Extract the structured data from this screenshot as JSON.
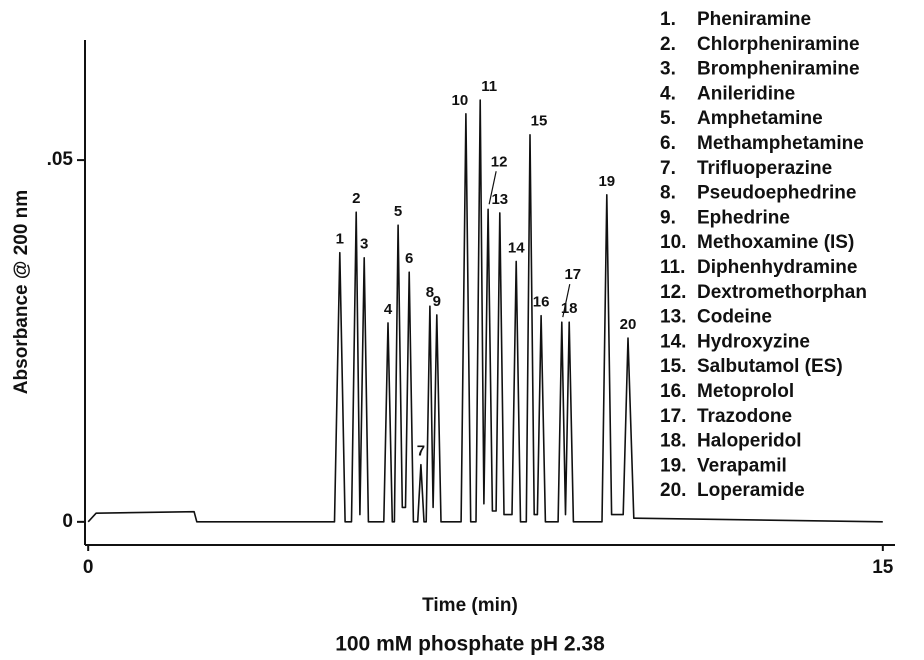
{
  "chart_data": {
    "type": "line",
    "subtitle": "100 mM phosphate pH 2.38",
    "x_label": "Time (min)",
    "y_label": "Absorbance @ 200 nm",
    "xlim": [
      -0.06,
      15.23
    ],
    "xticks": [
      0,
      15
    ],
    "ylim": [
      -0.0032,
      0.0666
    ],
    "yticks": [
      0,
      {
        "value": 0.05,
        "label": ".05"
      }
    ],
    "color": "#111111",
    "x": [
      0,
      0.15,
      2.0,
      2.05,
      4.65,
      4.75,
      4.85,
      4.97,
      5.06,
      5.13,
      5.21,
      5.29,
      5.58,
      5.66,
      5.74,
      5.78,
      5.85,
      5.93,
      5.99,
      6.06,
      6.14,
      6.22,
      6.28,
      6.34,
      6.38,
      6.45,
      6.51,
      6.58,
      6.66,
      7.04,
      7.13,
      7.22,
      7.32,
      7.4,
      7.47,
      7.55,
      7.63,
      7.7,
      7.77,
      7.85,
      8.0,
      8.08,
      8.16,
      8.27,
      8.34,
      8.42,
      8.48,
      8.55,
      8.63,
      8.87,
      8.94,
      9.01,
      9.08,
      9.16,
      9.7,
      9.79,
      9.88,
      10.1,
      10.19,
      10.3,
      15
    ],
    "values": [
      0,
      0.0012,
      0.0014,
      0,
      0,
      0.0372,
      0,
      0,
      0.0428,
      0.001,
      0.0365,
      0,
      0,
      0.0275,
      0,
      0,
      0.041,
      0.002,
      0.002,
      0.0345,
      0,
      0,
      0.0079,
      0,
      0,
      0.0298,
      0.002,
      0.0286,
      0,
      0,
      0.0564,
      0,
      0,
      0.0583,
      0.0025,
      0.0432,
      0.0015,
      0.0015,
      0.0427,
      0.001,
      0.001,
      0.036,
      0,
      0,
      0.0535,
      0.001,
      0.001,
      0.0285,
      0,
      0,
      0.0276,
      0.001,
      0.0276,
      0,
      0,
      0.0452,
      0.001,
      0.001,
      0.0254,
      0.0005,
      0
    ],
    "point_labels": [
      null,
      null,
      null,
      null,
      null,
      "1",
      null,
      null,
      "2",
      null,
      "3",
      null,
      null,
      "4",
      null,
      null,
      "5",
      null,
      null,
      "6",
      null,
      null,
      "7",
      null,
      null,
      "8",
      null,
      "9",
      null,
      null,
      "10",
      null,
      null,
      "11",
      null,
      "12",
      null,
      null,
      "13",
      null,
      null,
      "14",
      null,
      null,
      "15",
      null,
      null,
      "16",
      null,
      null,
      "17",
      null,
      "18",
      null,
      null,
      "19",
      null,
      null,
      "20",
      null,
      null
    ],
    "legend": [
      {
        "number": "1.",
        "name": "Pheniramine"
      },
      {
        "number": "2.",
        "name": "Chlorpheniramine"
      },
      {
        "number": "3.",
        "name": "Brompheniramine"
      },
      {
        "number": "4.",
        "name": "Anileridine"
      },
      {
        "number": "5.",
        "name": "Amphetamine"
      },
      {
        "number": "6.",
        "name": "Methamphetamine"
      },
      {
        "number": "7.",
        "name": "Trifluoperazine"
      },
      {
        "number": "8.",
        "name": "Pseudoephedrine"
      },
      {
        "number": "9.",
        "name": "Ephedrine"
      },
      {
        "number": "10.",
        "name": "Methoxamine (IS)"
      },
      {
        "number": "11.",
        "name": "Diphenhydramine"
      },
      {
        "number": "12.",
        "name": "Dextromethorphan"
      },
      {
        "number": "13.",
        "name": "Codeine"
      },
      {
        "number": "14.",
        "name": "Hydroxyzine"
      },
      {
        "number": "15.",
        "name": "Salbutamol (ES)"
      },
      {
        "number": "16.",
        "name": "Metoprolol"
      },
      {
        "number": "17.",
        "name": "Trazodone"
      },
      {
        "number": "18.",
        "name": "Haloperidol"
      },
      {
        "number": "19.",
        "name": "Verapamil"
      },
      {
        "number": "20.",
        "name": "Loperamide"
      }
    ]
  }
}
